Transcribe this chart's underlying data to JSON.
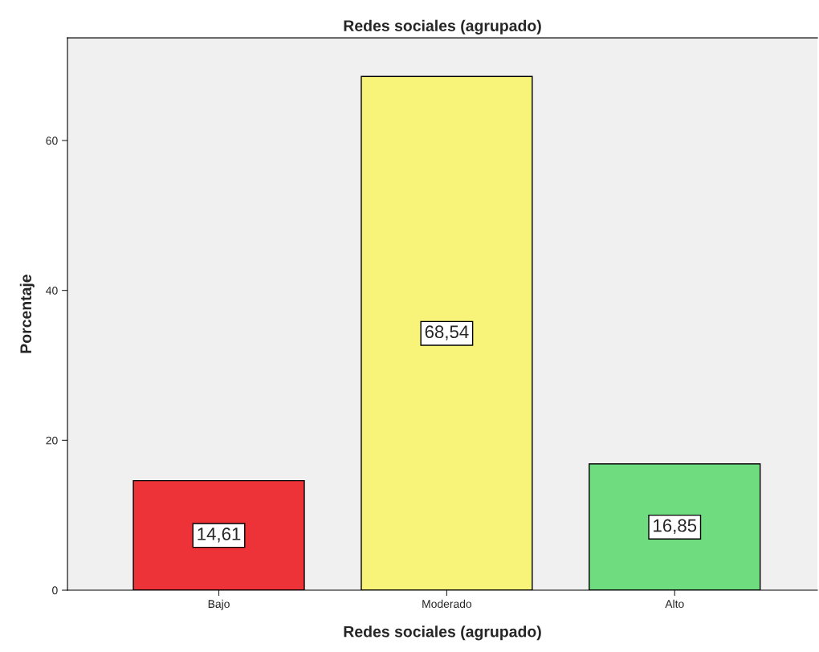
{
  "chart_data": {
    "type": "bar",
    "title": "Redes sociales (agrupado)",
    "xlabel": "Redes sociales (agrupado)",
    "ylabel": "Porcentaje",
    "categories": [
      "Bajo",
      "Moderado",
      "Alto"
    ],
    "values": [
      14.61,
      68.54,
      16.85
    ],
    "value_labels": [
      "14,61",
      "68,54",
      "16,85"
    ],
    "colors": [
      "#ee3338",
      "#f8f47a",
      "#70dc80"
    ],
    "ylim": [
      0,
      73.7
    ],
    "yticks": [
      0,
      20,
      40,
      60
    ],
    "grid": false,
    "legend": false
  }
}
